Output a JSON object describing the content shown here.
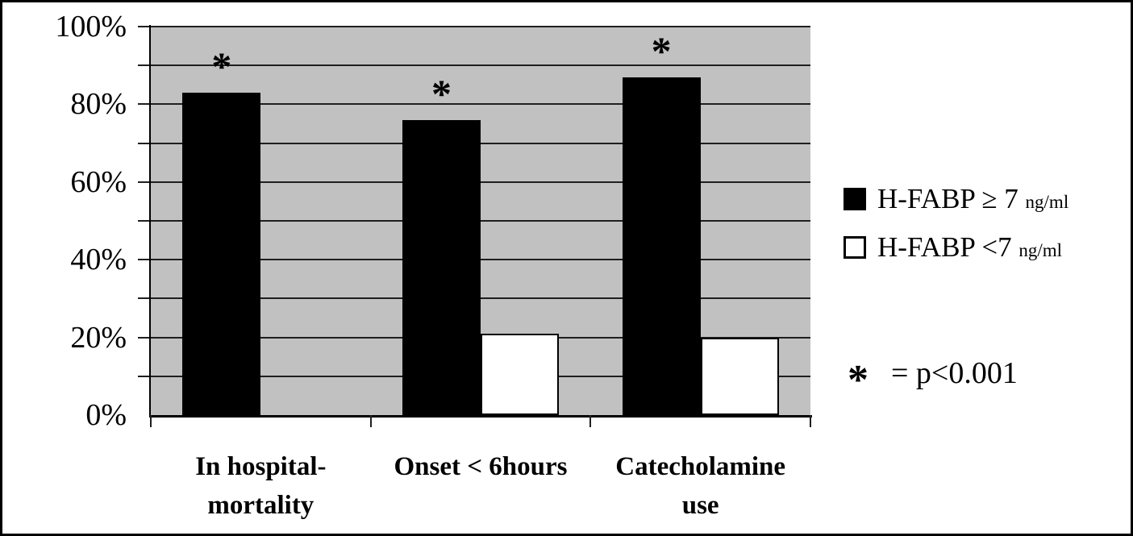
{
  "chart_data": {
    "type": "bar",
    "categories": [
      "In hospital-\nmortality",
      "Onset < 6hours",
      "Catecholamine\nuse"
    ],
    "series": [
      {
        "name": "H-FABP ≥ 7 ng/ml",
        "color": "#000000",
        "values": [
          83,
          76,
          87
        ],
        "starred": [
          true,
          true,
          true
        ]
      },
      {
        "name": "H-FABP <7 ng/ml",
        "color": "#ffffff",
        "values": [
          0,
          21,
          20
        ],
        "starred": [
          false,
          false,
          false
        ]
      }
    ],
    "title": "",
    "xlabel": "",
    "ylabel": "",
    "ylim": [
      0,
      100
    ],
    "y_tick_labels": [
      "100%",
      "80%",
      "60%",
      "40%",
      "20%",
      "0%"
    ],
    "grid_interval_pct": 10,
    "grid": "on",
    "plot_background": "#c1c1c1",
    "legend_position": "right",
    "significance_symbol": "*",
    "annotation": "* = p<0.001"
  },
  "legend": {
    "items": [
      {
        "label": "H-FABP ≥ 7",
        "unit": "ng/ml"
      },
      {
        "label": "H-FABP <7",
        "unit": "ng/ml"
      }
    ]
  },
  "note": {
    "symbol": "*",
    "text": "= p<0.001"
  }
}
